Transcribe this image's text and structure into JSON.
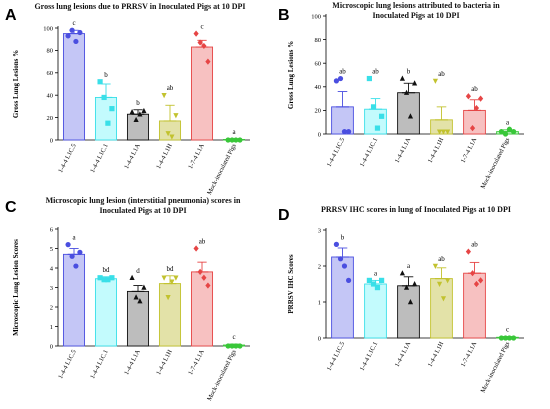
{
  "chart_data": [
    {
      "panel": "A",
      "type": "bar",
      "title": [
        "Gross lung lesions due to PRRSV in Inoculated Pigs at 10 DPI"
      ],
      "ylabel": "Gross Lung Lesions %",
      "ylim": [
        0,
        100
      ],
      "yticks": [
        0,
        20,
        40,
        60,
        80,
        100
      ],
      "categories": [
        "1-4-4 L1C.5",
        "1-4-4 L1C.1",
        "1-4-4 L1A",
        "1-4-4 L1H",
        "1-7-4 L1A",
        "Mock-inoculated Pigs"
      ],
      "values": [
        95,
        38,
        23,
        17,
        83,
        0.5
      ],
      "errors": [
        3,
        12,
        4,
        14,
        6,
        0.5
      ],
      "letters": [
        "c",
        "b",
        "b",
        "ab",
        "c",
        "a"
      ],
      "points": [
        [
          93,
          98,
          88,
          96
        ],
        [
          52,
          38,
          15,
          28
        ],
        [
          25,
          18,
          23,
          26
        ],
        [
          40,
          6,
          3,
          22
        ],
        [
          95,
          87,
          84,
          70
        ],
        [
          0,
          0,
          0,
          0
        ]
      ]
    },
    {
      "panel": "B",
      "type": "bar",
      "title": [
        "Microscopic lung lesions attributed to bacteria in",
        "Inoculated Pigs at 10 DPI"
      ],
      "ylabel": "Gross Lung Lesions %",
      "ylim": [
        0,
        100
      ],
      "yticks": [
        0,
        20,
        40,
        60,
        80,
        100
      ],
      "categories": [
        "1-4-4 L1C.5",
        "1-4-4 L1C.1",
        "1-4-4 L1A",
        "1-4-4 L1H",
        "1-7-4 L1A",
        "Mock-inoculated Pigs"
      ],
      "values": [
        23,
        21,
        35,
        12,
        20,
        2
      ],
      "errors": [
        13,
        9,
        8,
        11,
        9,
        1.5
      ],
      "letters": [
        "ab",
        "ab",
        "b",
        "ab",
        "ab",
        "a"
      ],
      "points": [
        [
          45,
          47,
          2,
          2
        ],
        [
          47,
          23,
          5,
          15
        ],
        [
          47,
          35,
          15,
          43
        ],
        [
          45,
          2,
          2,
          2
        ],
        [
          32,
          5,
          22,
          30
        ],
        [
          2,
          0,
          4,
          2
        ]
      ]
    },
    {
      "panel": "C",
      "type": "bar",
      "title": [
        "Microscopic lung lesion (interstitial pneumonia) scores in",
        "Inoculated Pigs at 10 DPI"
      ],
      "ylabel": "Microscopic Lung Lesion Scores",
      "ylim": [
        0,
        6
      ],
      "yticks": [
        0,
        1,
        2,
        3,
        4,
        5,
        6
      ],
      "categories": [
        "1-4-4 L1C.5",
        "1-4-4 L1C.1",
        "1-4-4 L1A",
        "1-4-4 L1H",
        "1-7-4 L1A",
        "Mock-inoculated Pigs"
      ],
      "values": [
        4.7,
        3.45,
        2.8,
        3.2,
        3.8,
        0.05
      ],
      "errors": [
        0.3,
        0.1,
        0.3,
        0.4,
        0.5,
        0.05
      ],
      "letters": [
        "a",
        "bd",
        "d",
        "bd",
        "ab",
        "c"
      ],
      "points": [
        [
          5.2,
          4.6,
          4.1,
          4.8
        ],
        [
          3.5,
          3.4,
          3.4,
          3.5
        ],
        [
          3.5,
          2.5,
          2.3,
          3.0
        ],
        [
          3.5,
          2.5,
          3.3,
          3.5
        ],
        [
          5.0,
          3.8,
          3.5,
          3.1
        ],
        [
          0,
          0,
          0,
          0
        ]
      ]
    },
    {
      "panel": "D",
      "type": "bar",
      "title": [
        "PRRSV IHC scores in lung of Inoculated Pigs at 10 DPI"
      ],
      "ylabel": "PRRSV IHC Scores",
      "ylim": [
        0,
        3
      ],
      "yticks": [
        0,
        1,
        2,
        3
      ],
      "categories": [
        "1-4-4 L1C.5",
        "1-4-4 L1C.1",
        "1-4-4 L1A",
        "1-4-4 L1H",
        "1-7-4 L1A",
        "Mock-inoculated Pigs"
      ],
      "values": [
        2.25,
        1.5,
        1.45,
        1.65,
        1.8,
        0.02
      ],
      "errors": [
        0.25,
        0.1,
        0.25,
        0.3,
        0.3,
        0.02
      ],
      "letters": [
        "b",
        "a",
        "a",
        "ab",
        "ab",
        "c"
      ],
      "points": [
        [
          2.6,
          2.2,
          2.0,
          1.6
        ],
        [
          1.6,
          1.5,
          1.4,
          1.6
        ],
        [
          1.8,
          1.4,
          1.0,
          1.5
        ],
        [
          2.0,
          1.5,
          1.1,
          1.6
        ],
        [
          2.4,
          1.8,
          1.5,
          1.6
        ],
        [
          0,
          0,
          0,
          0
        ]
      ]
    }
  ],
  "series_style": {
    "fills": [
      "#c4c6f6",
      "#c3fbfd",
      "#bdbdbd",
      "#e3e2a8",
      "#f7c1c1",
      "#c8f6c8"
    ],
    "strokes": [
      "#4a4ee0",
      "#39dfe8",
      "#111111",
      "#c2c22e",
      "#e64545",
      "#39c739"
    ],
    "markers": [
      "circle",
      "square",
      "triangle",
      "triangle-down",
      "diamond",
      "circle"
    ]
  }
}
